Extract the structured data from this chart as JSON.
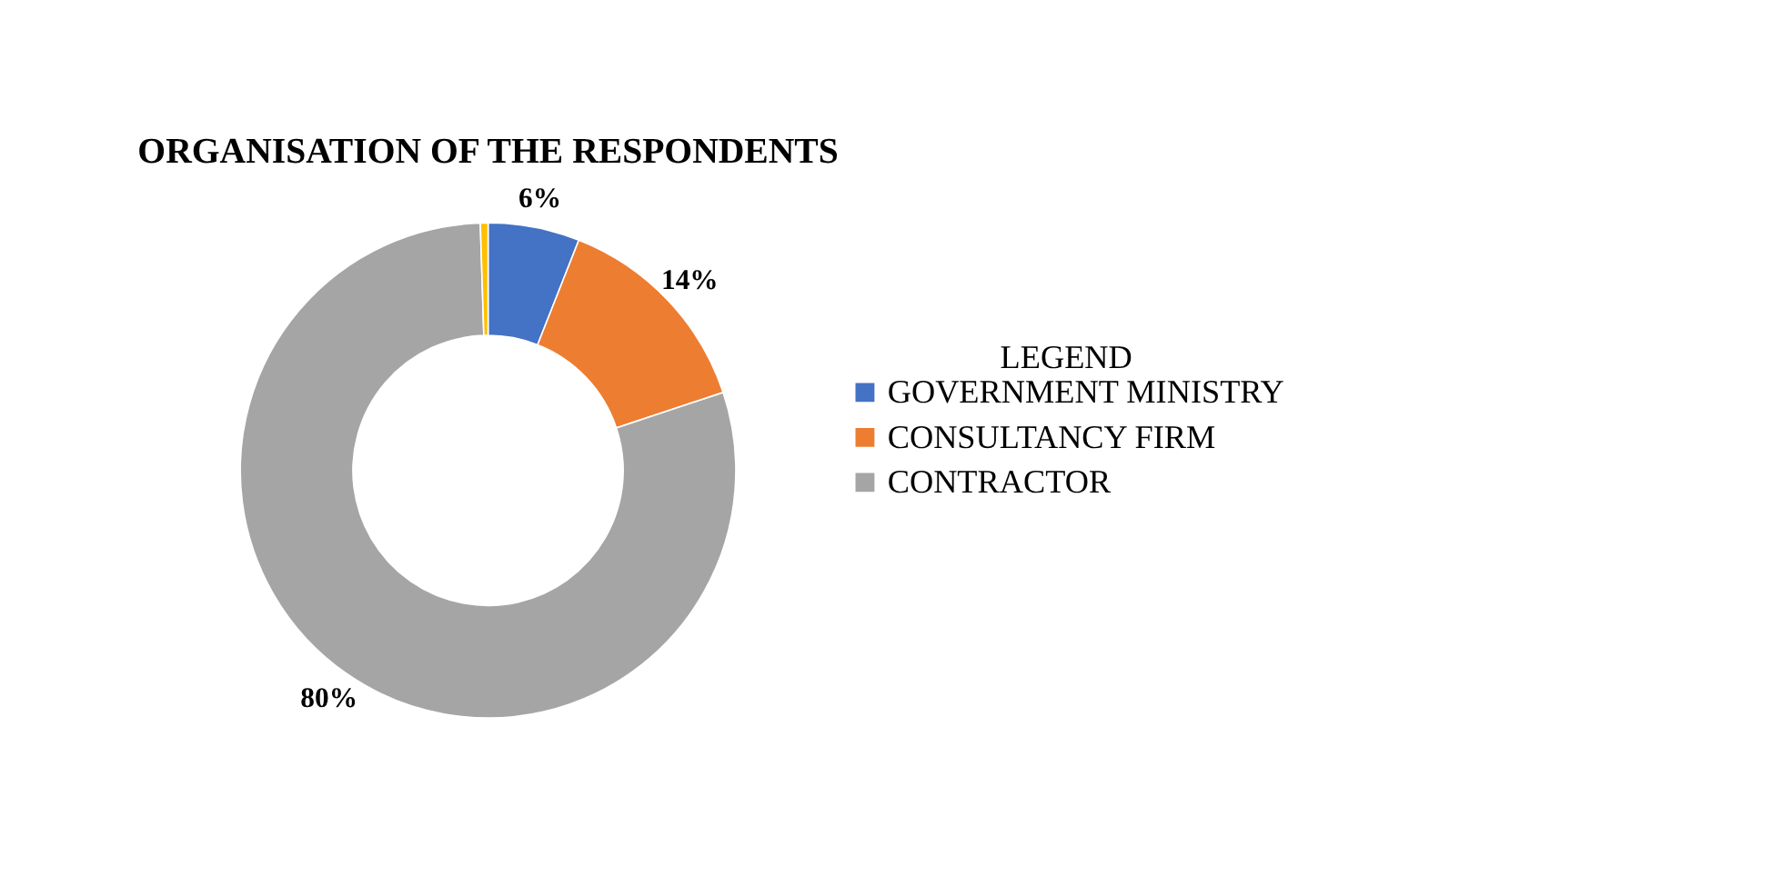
{
  "chart_data": {
    "type": "donut",
    "title": "ORGANISATION OF THE RESPONDENTS",
    "legend_title": "LEGEND",
    "legend": "right",
    "categories": [
      "GOVERNMENT MINISTRY",
      "CONSULTANCY FIRM",
      "CONTRACTOR",
      null
    ],
    "values": [
      6,
      14,
      80,
      0.5
    ],
    "colors": [
      "#4472c4",
      "#ed7d31",
      "#a5a5a5",
      "#ffc000"
    ],
    "value_labels": [
      "6%",
      "14%",
      "80%",
      null
    ]
  }
}
